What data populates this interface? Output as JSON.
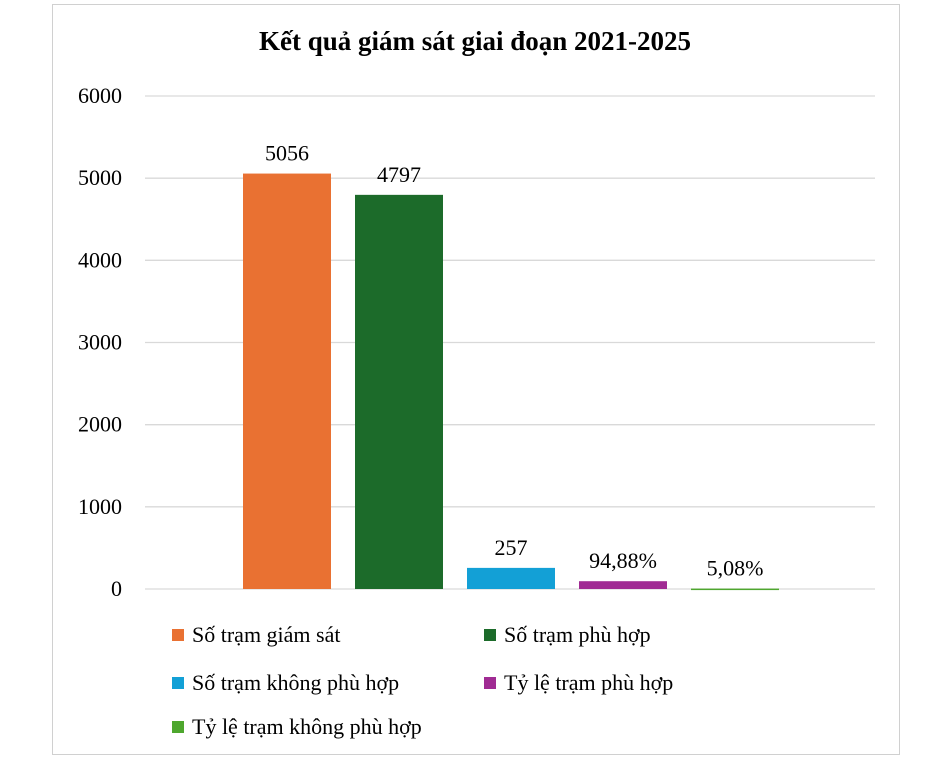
{
  "chart_data": {
    "type": "bar",
    "title": "Kết quả giám sát giai đoạn 2021-2025",
    "categories": [
      ""
    ],
    "series": [
      {
        "name": "Số trạm giám sát",
        "values": [
          5056
        ],
        "label": "5056",
        "color": "#E97132"
      },
      {
        "name": "Số trạm phù hợp",
        "values": [
          4797
        ],
        "label": "4797",
        "color": "#1C6B2A"
      },
      {
        "name": "Số trạm không phù hợp",
        "values": [
          257
        ],
        "label": "257",
        "color": "#13A0D6"
      },
      {
        "name": "Tỷ lệ trạm phù hợp",
        "values": [
          94.88
        ],
        "label": "94,88%",
        "color": "#A02B93"
      },
      {
        "name": "Tỷ lệ trạm không phù hợp",
        "values": [
          5.08
        ],
        "label": "5,08%",
        "color": "#4EA72E"
      }
    ],
    "ylim": [
      0,
      6000
    ],
    "yticks": [
      "0",
      "1000",
      "2000",
      "3000",
      "4000",
      "5000",
      "6000"
    ],
    "grid": true,
    "legend": "bottom"
  }
}
